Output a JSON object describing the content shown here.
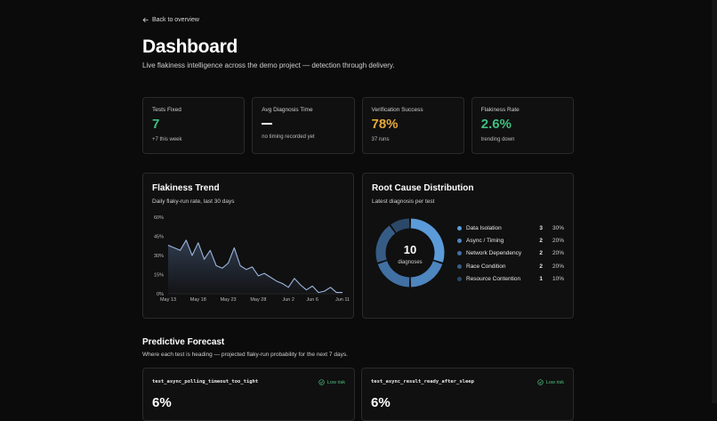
{
  "nav": {
    "back_label": "Back to overview"
  },
  "page": {
    "title": "Dashboard",
    "subtitle": "Live flakiness intelligence across the demo project — detection through delivery."
  },
  "stats": [
    {
      "label": "Tests Fixed",
      "value": "7",
      "note": "+7 this week",
      "color": "#3fbf7f"
    },
    {
      "label": "Avg Diagnosis Time",
      "value": "—",
      "note": "no timing recorded yet",
      "color": "#ffffff"
    },
    {
      "label": "Verification Success",
      "value": "78%",
      "note": "37 runs",
      "color": "#e5a93a"
    },
    {
      "label": "Flakiness Rate",
      "value": "2.6%",
      "note": "trending down",
      "color": "#3fbf7f"
    }
  ],
  "trend": {
    "title": "Flakiness Trend",
    "subtitle": "Daily flaky-run rate, last 30 days"
  },
  "root_cause": {
    "title": "Root Cause Distribution",
    "subtitle": "Latest diagnosis per test",
    "center_value": "10",
    "center_label": "diagnoses",
    "items": [
      {
        "name": "Data Isolation",
        "count": "3",
        "pct": "30%",
        "color": "#5b9bd9"
      },
      {
        "name": "Async / Timing",
        "count": "2",
        "pct": "20%",
        "color": "#4e86c0"
      },
      {
        "name": "Network Dependency",
        "count": "2",
        "pct": "20%",
        "color": "#4170a3"
      },
      {
        "name": "Race Condition",
        "count": "2",
        "pct": "20%",
        "color": "#365c86"
      },
      {
        "name": "Resource Contention",
        "count": "1",
        "pct": "10%",
        "color": "#2b4868"
      }
    ]
  },
  "forecast": {
    "title": "Predictive Forecast",
    "subtitle": "Where each test is heading — projected flaky-run probability for the next 7 days.",
    "cards": [
      {
        "name": "test_async_polling_timeout_too_tight",
        "risk": "Low risk",
        "value": "6%"
      },
      {
        "name": "test_async_result_ready_after_sleep",
        "risk": "Low risk",
        "value": "6%"
      }
    ]
  },
  "chart_data": [
    {
      "type": "area",
      "x": [
        "May 13",
        "May 14",
        "May 15",
        "May 16",
        "May 17",
        "May 18",
        "May 19",
        "May 20",
        "May 21",
        "May 22",
        "May 23",
        "May 24",
        "May 25",
        "May 26",
        "May 27",
        "May 28",
        "May 29",
        "May 30",
        "May 31",
        "Jun 1",
        "Jun 2",
        "Jun 3",
        "Jun 4",
        "Jun 5",
        "Jun 6",
        "Jun 7",
        "Jun 8",
        "Jun 9",
        "Jun 10",
        "Jun 11"
      ],
      "series": [
        {
          "values": [
            38,
            36,
            34,
            42,
            30,
            40,
            27,
            34,
            22,
            20,
            24,
            36,
            22,
            19,
            21,
            14,
            16,
            13,
            10,
            8,
            5,
            12,
            7,
            3,
            6,
            1,
            2,
            5,
            1,
            1
          ]
        }
      ],
      "tick_labels_x": [
        "May 13",
        "May 18",
        "May 23",
        "May 28",
        "Jun 2",
        "Jun 6",
        "Jun 11"
      ],
      "tick_labels_y": [
        "0%",
        "15%",
        "30%",
        "45%",
        "60%"
      ],
      "ylim": [
        0,
        60
      ],
      "grid": false
    },
    {
      "type": "pie",
      "labels": [
        "Data Isolation",
        "Async / Timing",
        "Network Dependency",
        "Race Condition",
        "Resource Contention"
      ],
      "values": [
        3,
        2,
        2,
        2,
        1
      ]
    }
  ]
}
